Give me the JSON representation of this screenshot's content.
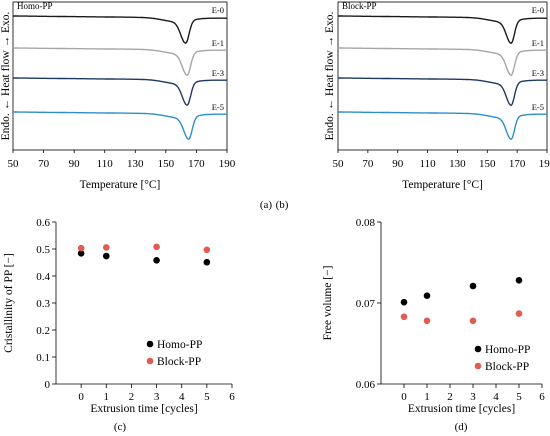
{
  "chart_data": [
    {
      "type": "line",
      "panel": "(a)",
      "title": "Homo-PP",
      "xlabel": "Temperature [°C]",
      "ylabel": "Endo. ← Heat flow → Exo.",
      "xlim": [
        50,
        190
      ],
      "x_ticks": [
        "50",
        "70",
        "90",
        "110",
        "130",
        "150",
        "170",
        "190"
      ],
      "grid": false,
      "series": [
        {
          "name": "E-0",
          "color": "#1a1a1a",
          "peak_x": 163,
          "peak_depth": 0.82
        },
        {
          "name": "E-1",
          "color": "#a6a6a6",
          "peak_x": 164,
          "peak_depth": 0.82
        },
        {
          "name": "E-3",
          "color": "#1f3864",
          "peak_x": 164,
          "peak_depth": 0.82
        },
        {
          "name": "E-5",
          "color": "#2e8fc8",
          "peak_x": 165,
          "peak_depth": 0.82
        }
      ]
    },
    {
      "type": "line",
      "panel": "(b)",
      "title": "Block-PP",
      "xlabel": "Temperature [°C]",
      "ylabel": "Endo. ← Heat flow → Exo.",
      "xlim": [
        50,
        190
      ],
      "x_ticks": [
        "50",
        "70",
        "90",
        "110",
        "130",
        "150",
        "170",
        "190"
      ],
      "grid": false,
      "series": [
        {
          "name": "E-0",
          "color": "#1a1a1a",
          "peak_x": 166,
          "peak_depth": 0.82
        },
        {
          "name": "E-1",
          "color": "#a6a6a6",
          "peak_x": 166,
          "peak_depth": 0.82
        },
        {
          "name": "E-3",
          "color": "#1f3864",
          "peak_x": 166,
          "peak_depth": 0.82
        },
        {
          "name": "E-5",
          "color": "#2e8fc8",
          "peak_x": 166,
          "peak_depth": 0.82
        }
      ]
    },
    {
      "type": "scatter",
      "panel": "(c)",
      "xlabel": "Extrusion time [cycles]",
      "ylabel": "Cristallinity of PP [−]",
      "xlim": [
        -1,
        6
      ],
      "ylim": [
        0,
        0.6
      ],
      "x_ticks": [
        "0",
        "1",
        "2",
        "3",
        "4",
        "5",
        "6"
      ],
      "y_ticks": [
        "0",
        "0.1",
        "0.2",
        "0.3",
        "0.4",
        "0.5",
        "0.6"
      ],
      "legend": "bottom-right",
      "grid": false,
      "series": [
        {
          "name": "Homo-PP",
          "color": "#000000",
          "x": [
            0,
            1,
            3,
            5
          ],
          "y": [
            0.484,
            0.474,
            0.458,
            0.451
          ]
        },
        {
          "name": "Block-PP",
          "color": "#e35a4f",
          "x": [
            0,
            1,
            3,
            5
          ],
          "y": [
            0.503,
            0.506,
            0.508,
            0.497
          ]
        }
      ]
    },
    {
      "type": "scatter",
      "panel": "(d)",
      "xlabel": "Extrusion time [cycles]",
      "ylabel": "Free volume [−]",
      "xlim": [
        -1,
        6
      ],
      "ylim": [
        0.06,
        0.08
      ],
      "x_ticks": [
        "0",
        "1",
        "2",
        "3",
        "4",
        "5",
        "6"
      ],
      "y_ticks": [
        "0.06",
        "0.07",
        "0.08"
      ],
      "legend": "bottom-right",
      "grid": false,
      "series": [
        {
          "name": "Homo-PP",
          "color": "#000000",
          "x": [
            0,
            1,
            3,
            5
          ],
          "y": [
            0.0701,
            0.0709,
            0.0721,
            0.0728
          ]
        },
        {
          "name": "Block-PP",
          "color": "#e35a4f",
          "x": [
            0,
            1,
            3,
            5
          ],
          "y": [
            0.0683,
            0.0678,
            0.0678,
            0.0687
          ]
        }
      ]
    }
  ]
}
